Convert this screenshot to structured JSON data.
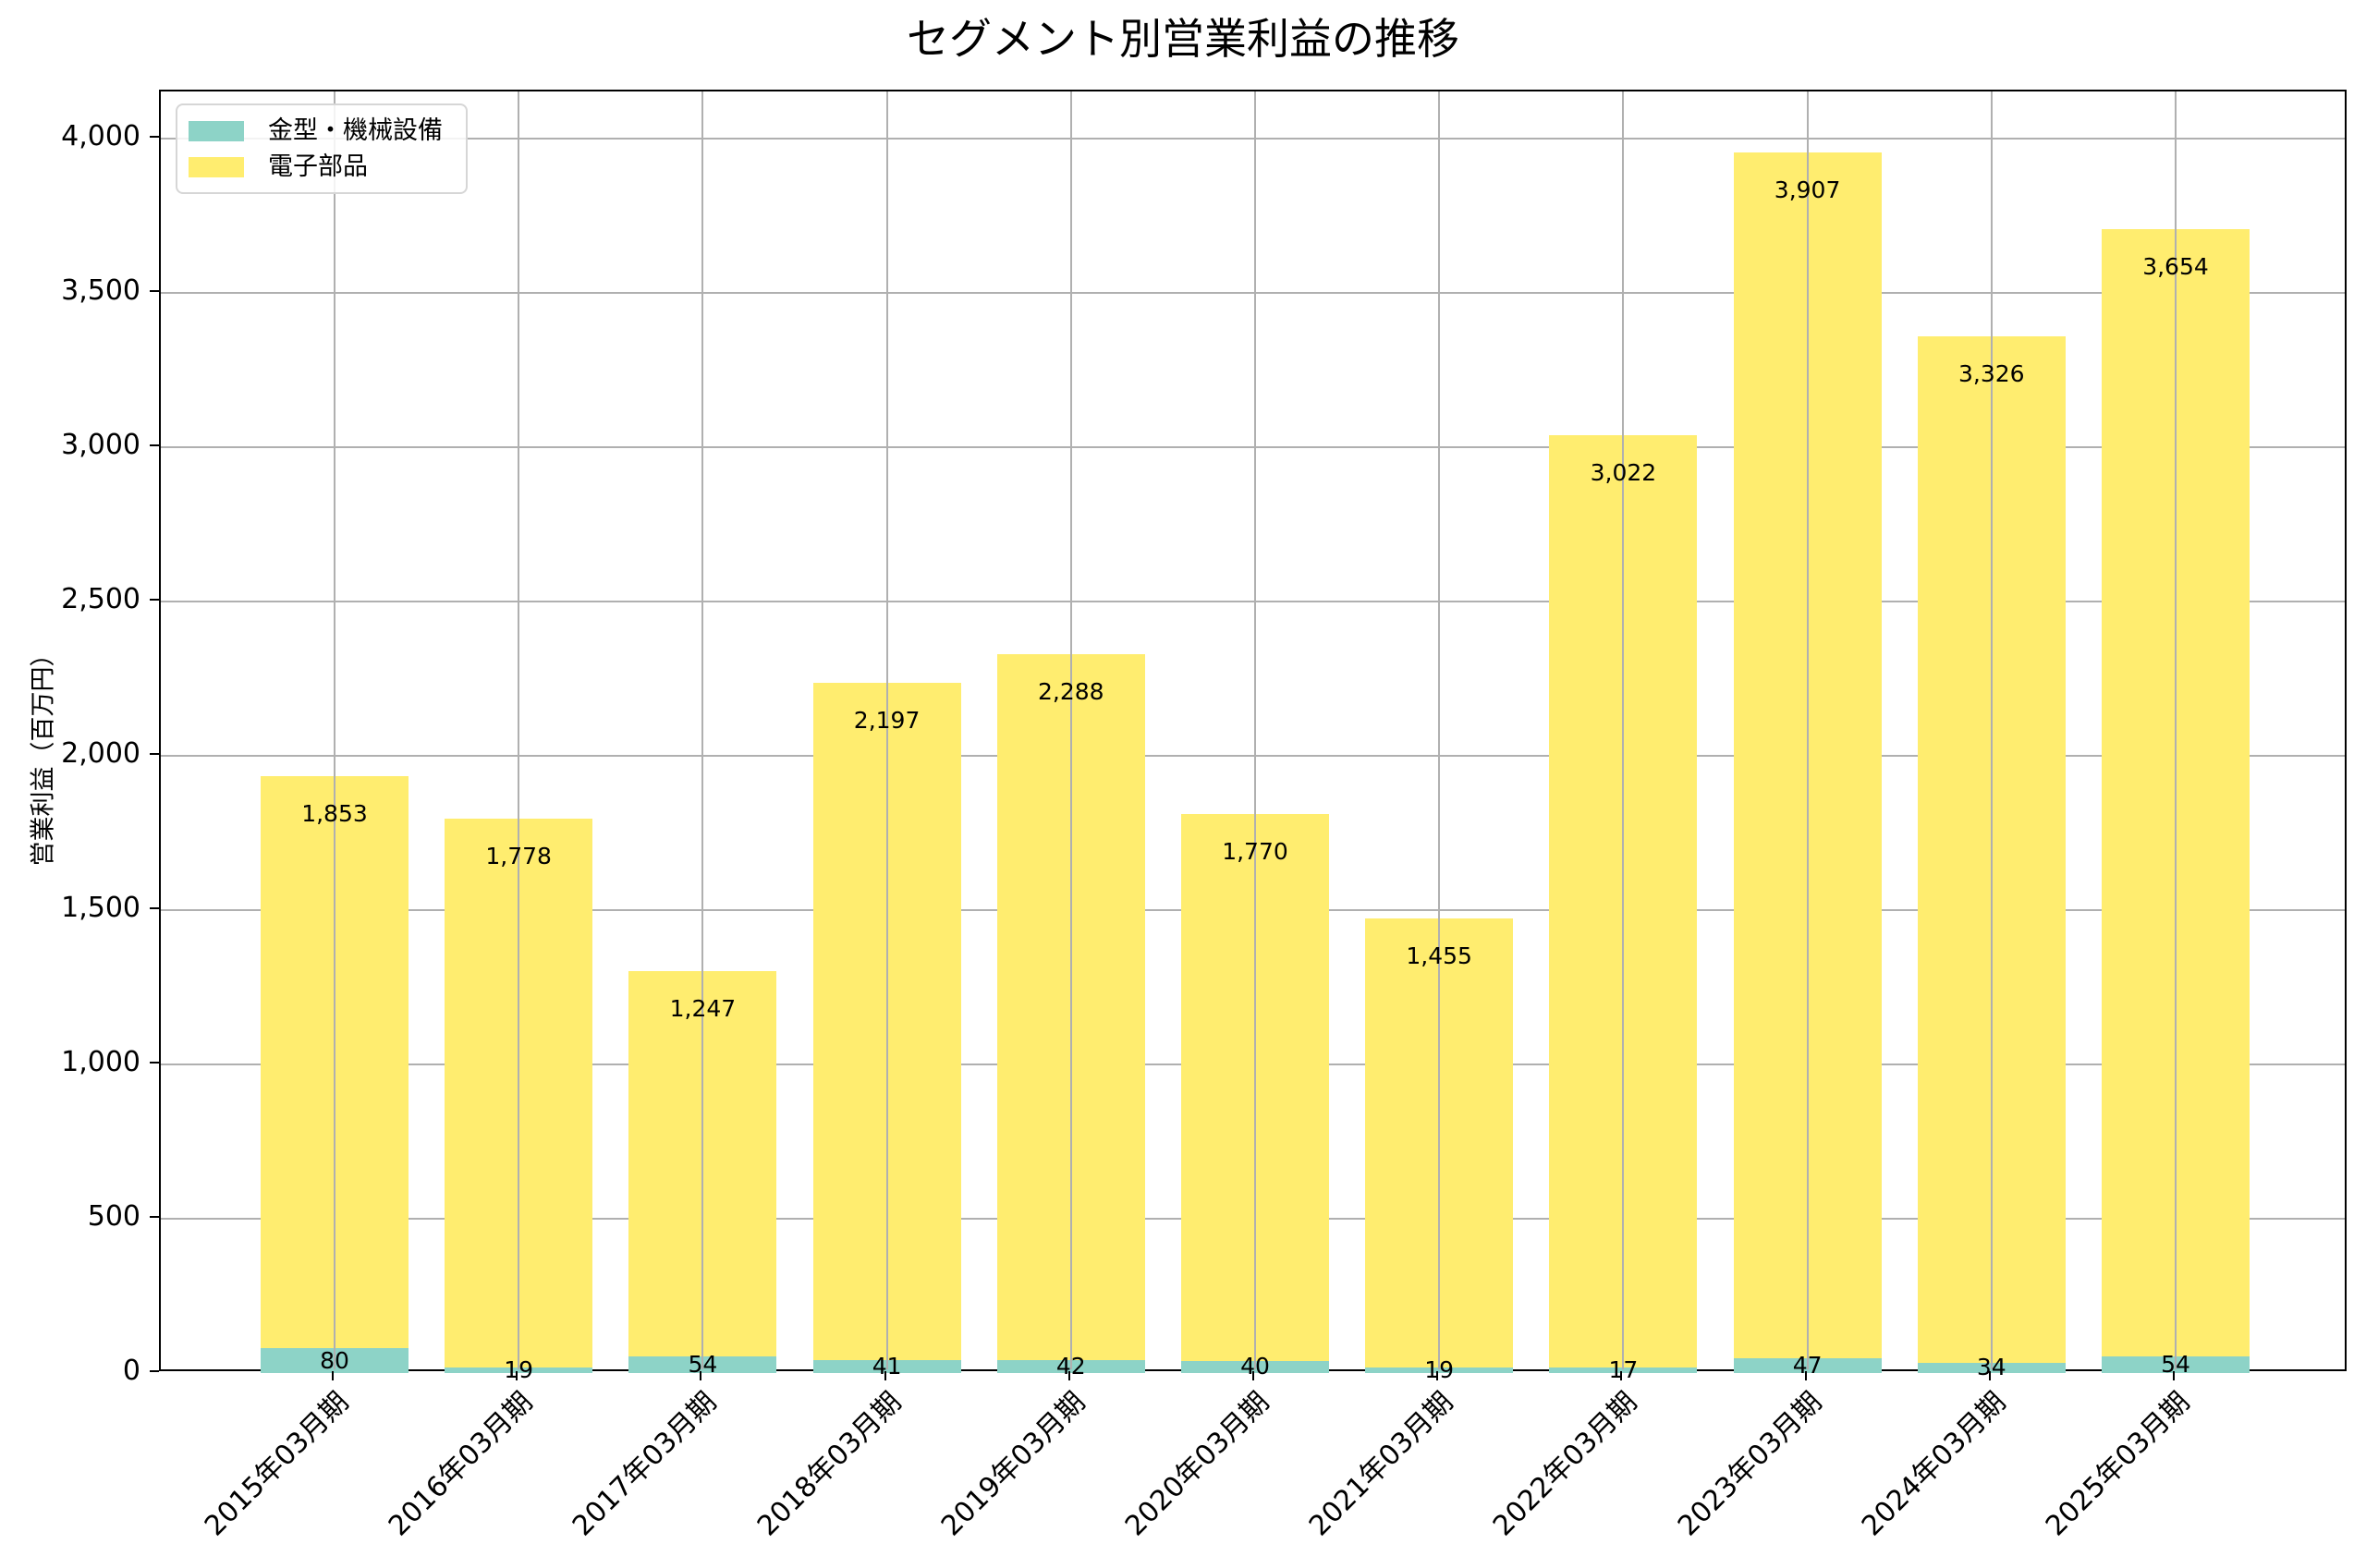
{
  "chart_data": {
    "type": "bar",
    "stacked": true,
    "title": "セグメント別営業利益の推移",
    "xlabel": "",
    "ylabel": "営業利益（百万円）",
    "ylim": [
      0,
      4150
    ],
    "yticks": [
      0,
      500,
      1000,
      1500,
      2000,
      2500,
      3000,
      3500,
      4000
    ],
    "ytick_labels": [
      "0",
      "500",
      "1,000",
      "1,500",
      "2,000",
      "2,500",
      "3,000",
      "3,500",
      "4,000"
    ],
    "grid": true,
    "legend_position": "upper left",
    "categories": [
      "2015年03月期",
      "2016年03月期",
      "2017年03月期",
      "2018年03月期",
      "2019年03月期",
      "2020年03月期",
      "2021年03月期",
      "2022年03月期",
      "2023年03月期",
      "2024年03月期",
      "2025年03月期"
    ],
    "series": [
      {
        "name": "金型・機械設備",
        "color": "#8dd3c7",
        "values": [
          80,
          19,
          54,
          41,
          42,
          40,
          19,
          17,
          47,
          34,
          54
        ],
        "labels": [
          "80",
          "19",
          "54",
          "41",
          "42",
          "40",
          "19",
          "17",
          "47",
          "34",
          "54"
        ]
      },
      {
        "name": "電子部品",
        "color": "#ffed6f",
        "values": [
          1853,
          1778,
          1247,
          2197,
          2288,
          1770,
          1455,
          3022,
          3907,
          3326,
          3654
        ],
        "labels": [
          "1,853",
          "1,778",
          "1,247",
          "2,197",
          "2,288",
          "1,770",
          "1,455",
          "3,022",
          "3,907",
          "3,326",
          "3,654"
        ]
      }
    ]
  },
  "title": "セグメント別営業利益の推移",
  "ylabel": "営業利益（百万円）",
  "legend": {
    "items": [
      {
        "label": "金型・機械設備",
        "color": "#8dd3c7"
      },
      {
        "label": "電子部品",
        "color": "#ffed6f"
      }
    ]
  }
}
